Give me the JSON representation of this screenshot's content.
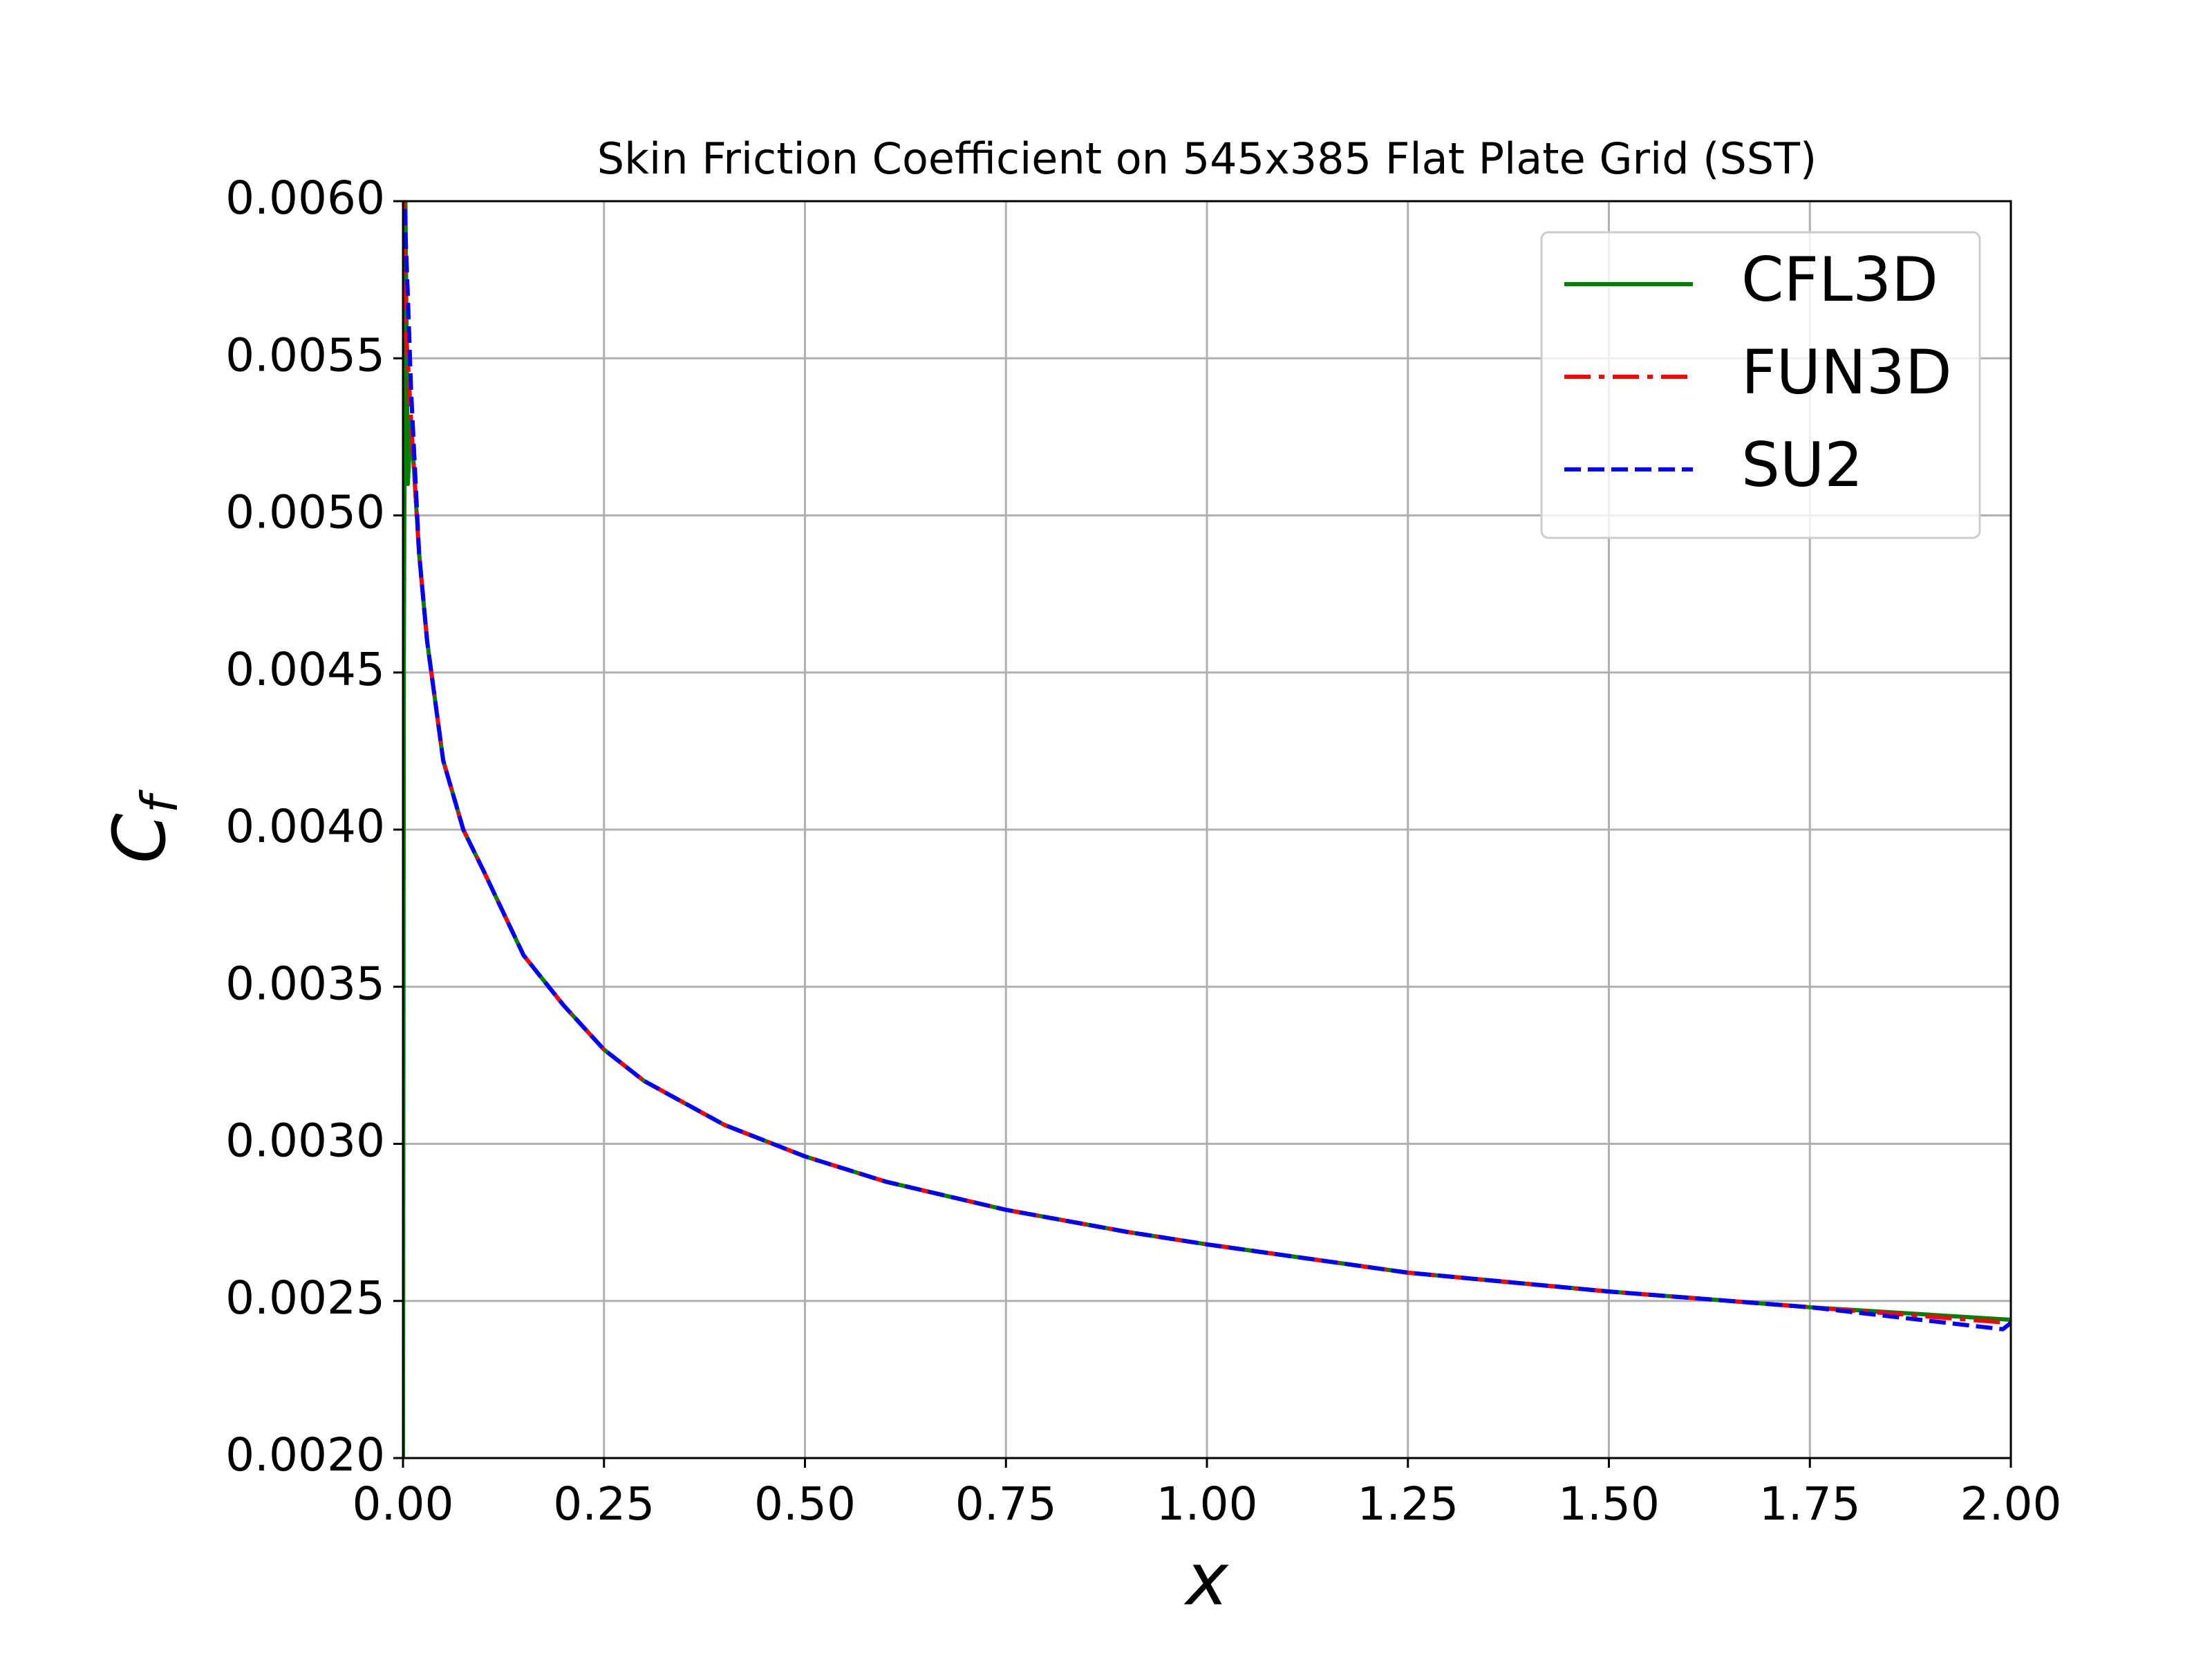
{
  "chart_data": {
    "type": "line",
    "title": "Skin Friction Coefficient on 545x385 Flat Plate Grid (SST)",
    "xlabel": "x",
    "ylabel": {
      "text": "C",
      "subscript": "f"
    },
    "xlim": [
      0,
      2
    ],
    "ylim": [
      0.002,
      0.006
    ],
    "xticks": [
      {
        "value": 0,
        "label": "0.00"
      },
      {
        "value": 0.25,
        "label": "0.25"
      },
      {
        "value": 0.5,
        "label": "0.50"
      },
      {
        "value": 0.75,
        "label": "0.75"
      },
      {
        "value": 1,
        "label": "1.00"
      },
      {
        "value": 1.25,
        "label": "1.25"
      },
      {
        "value": 1.5,
        "label": "1.50"
      },
      {
        "value": 1.75,
        "label": "1.75"
      },
      {
        "value": 2,
        "label": "2.00"
      }
    ],
    "yticks": [
      {
        "value": 0.002,
        "label": "0.0020"
      },
      {
        "value": 0.0025,
        "label": "0.0025"
      },
      {
        "value": 0.003,
        "label": "0.0030"
      },
      {
        "value": 0.0035,
        "label": "0.0035"
      },
      {
        "value": 0.004,
        "label": "0.0040"
      },
      {
        "value": 0.0045,
        "label": "0.0045"
      },
      {
        "value": 0.005,
        "label": "0.0050"
      },
      {
        "value": 0.0055,
        "label": "0.0055"
      },
      {
        "value": 0.006,
        "label": "0.0060"
      }
    ],
    "grid": true,
    "legend": "upper right",
    "series": [
      {
        "name": "CFL3D",
        "color": "#008000",
        "style": "solid",
        "x": [
          0,
          0.001,
          0.003,
          0.006,
          0.01,
          0.02,
          0.03,
          0.05,
          0.075,
          0.1,
          0.15,
          0.2,
          0.25,
          0.3,
          0.4,
          0.5,
          0.6,
          0.75,
          0.9,
          1,
          1.25,
          1.5,
          1.75,
          2
        ],
        "values": [
          0.002,
          0.0045,
          0.006,
          0.0051,
          0.0053,
          0.00488,
          0.0046,
          0.00422,
          0.004,
          0.00387,
          0.0036,
          0.00344,
          0.0033,
          0.0032,
          0.00306,
          0.00296,
          0.00288,
          0.00279,
          0.00272,
          0.00268,
          0.00259,
          0.00253,
          0.00248,
          0.00244
        ]
      },
      {
        "name": "FUN3D",
        "color": "#ff0000",
        "style": "dashdot",
        "x": [
          0,
          0.003,
          0.006,
          0.01,
          0.02,
          0.03,
          0.05,
          0.075,
          0.1,
          0.15,
          0.2,
          0.25,
          0.3,
          0.4,
          0.5,
          0.6,
          0.75,
          0.9,
          1,
          1.25,
          1.5,
          1.75,
          2
        ],
        "values": [
          0.0062,
          0.0056,
          0.0055,
          0.0053,
          0.00488,
          0.0046,
          0.00422,
          0.004,
          0.00387,
          0.0036,
          0.00344,
          0.0033,
          0.0032,
          0.00306,
          0.00296,
          0.00288,
          0.00279,
          0.00272,
          0.00268,
          0.00259,
          0.00253,
          0.00248,
          0.00243
        ]
      },
      {
        "name": "SU2",
        "color": "#0000ff",
        "style": "dashed",
        "x": [
          0,
          0.003,
          0.006,
          0.01,
          0.02,
          0.03,
          0.05,
          0.075,
          0.1,
          0.15,
          0.2,
          0.25,
          0.3,
          0.4,
          0.5,
          0.6,
          0.75,
          0.9,
          1,
          1.25,
          1.5,
          1.75,
          1.99,
          2
        ],
        "values": [
          0.0062,
          0.0059,
          0.0057,
          0.0054,
          0.00488,
          0.0046,
          0.00422,
          0.004,
          0.00387,
          0.0036,
          0.00344,
          0.0033,
          0.0032,
          0.00306,
          0.00296,
          0.00288,
          0.00279,
          0.00272,
          0.00268,
          0.00259,
          0.00253,
          0.00248,
          0.00241,
          0.00243
        ]
      }
    ]
  }
}
